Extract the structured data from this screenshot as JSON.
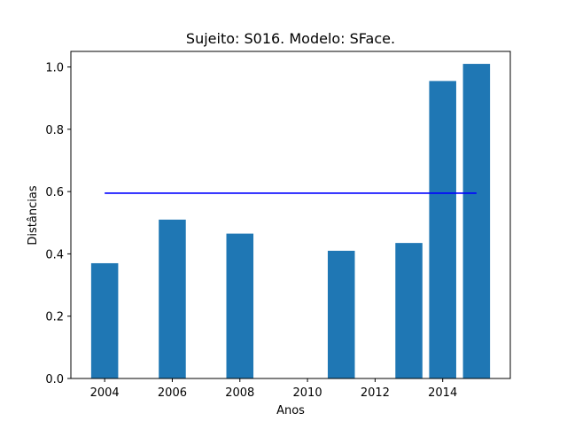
{
  "chart_data": {
    "type": "bar",
    "title": "Sujeito: S016. Modelo: SFace.",
    "xlabel": "Anos",
    "ylabel": "Distâncias",
    "xlim": [
      2003.0,
      2016.0
    ],
    "ylim": [
      0.0,
      1.05
    ],
    "xticks": [
      2004,
      2006,
      2008,
      2010,
      2012,
      2014
    ],
    "xtick_labels": [
      "2004",
      "2006",
      "2008",
      "2010",
      "2012",
      "2014"
    ],
    "yticks": [
      0.0,
      0.2,
      0.4,
      0.6,
      0.8,
      1.0
    ],
    "ytick_labels": [
      "0.0",
      "0.2",
      "0.4",
      "0.6",
      "0.8",
      "1.0"
    ],
    "bar_width": 0.8,
    "bars": [
      {
        "x": 2004,
        "value": 0.37
      },
      {
        "x": 2006,
        "value": 0.51
      },
      {
        "x": 2008,
        "value": 0.465
      },
      {
        "x": 2011,
        "value": 0.41
      },
      {
        "x": 2013,
        "value": 0.435
      },
      {
        "x": 2014,
        "value": 0.955
      },
      {
        "x": 2015,
        "value": 1.01
      }
    ],
    "threshold_line": {
      "x_start": 2004,
      "x_end": 2015,
      "value": 0.595,
      "color": "#0000ff"
    },
    "bar_color": "#1f77b4",
    "grid": false,
    "legend": "none"
  }
}
